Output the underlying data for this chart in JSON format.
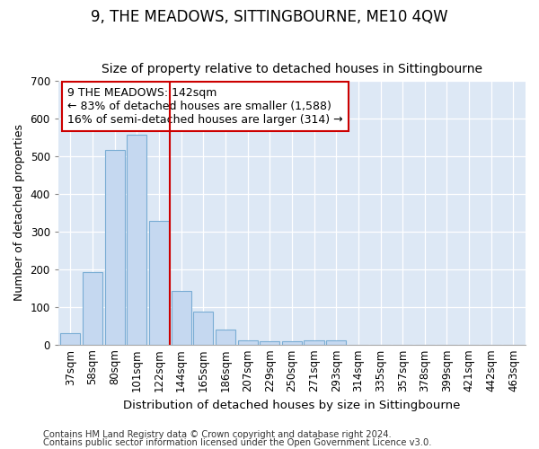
{
  "title": "9, THE MEADOWS, SITTINGBOURNE, ME10 4QW",
  "subtitle": "Size of property relative to detached houses in Sittingbourne",
  "xlabel": "Distribution of detached houses by size in Sittingbourne",
  "ylabel": "Number of detached properties",
  "categories": [
    "37sqm",
    "58sqm",
    "80sqm",
    "101sqm",
    "122sqm",
    "144sqm",
    "165sqm",
    "186sqm",
    "207sqm",
    "229sqm",
    "250sqm",
    "271sqm",
    "293sqm",
    "314sqm",
    "335sqm",
    "357sqm",
    "378sqm",
    "399sqm",
    "421sqm",
    "442sqm",
    "463sqm"
  ],
  "values": [
    30,
    192,
    515,
    557,
    328,
    143,
    87,
    40,
    12,
    8,
    8,
    10,
    10,
    0,
    0,
    0,
    0,
    0,
    0,
    0,
    0
  ],
  "bar_color": "#c5d8f0",
  "bar_edge_color": "#7aadd4",
  "vline_x_index": 5,
  "vline_color": "#cc0000",
  "annotation_text": "9 THE MEADOWS: 142sqm\n← 83% of detached houses are smaller (1,588)\n16% of semi-detached houses are larger (314) →",
  "annotation_box_facecolor": "#ffffff",
  "annotation_box_edgecolor": "#cc0000",
  "ylim": [
    0,
    700
  ],
  "yticks": [
    0,
    100,
    200,
    300,
    400,
    500,
    600,
    700
  ],
  "title_fontsize": 12,
  "subtitle_fontsize": 10,
  "xlabel_fontsize": 9.5,
  "ylabel_fontsize": 9,
  "tick_fontsize": 8.5,
  "annotation_fontsize": 9,
  "footer1": "Contains HM Land Registry data © Crown copyright and database right 2024.",
  "footer2": "Contains public sector information licensed under the Open Government Licence v3.0.",
  "fig_facecolor": "#ffffff",
  "plot_bg_color": "#dde8f5"
}
